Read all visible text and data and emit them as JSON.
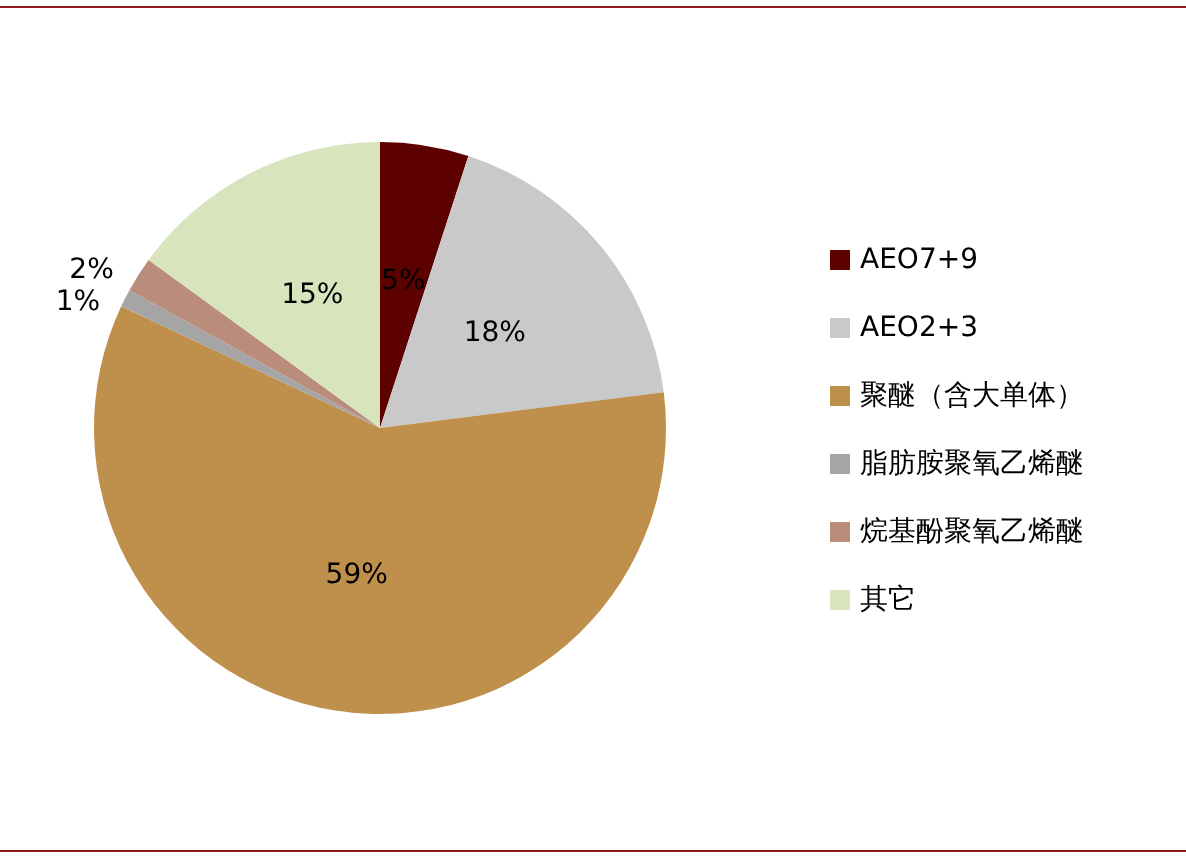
{
  "chart_data": {
    "type": "pie",
    "categories": [
      "AEO7+9",
      "AEO2+3",
      "聚醚（含大单体）",
      "脂肪胺聚氧乙烯醚",
      "烷基酚聚氧乙烯醚",
      "其它"
    ],
    "values": [
      5,
      18,
      59,
      1,
      2,
      15
    ],
    "colors": [
      "#5c0000",
      "#c9c9c9",
      "#bf8f4c",
      "#a5a5a5",
      "#ba8c7c",
      "#d8e4bc"
    ],
    "value_labels": [
      "5%",
      "18%",
      "59%",
      "1%",
      "2%",
      "15%"
    ],
    "legend": "right"
  }
}
